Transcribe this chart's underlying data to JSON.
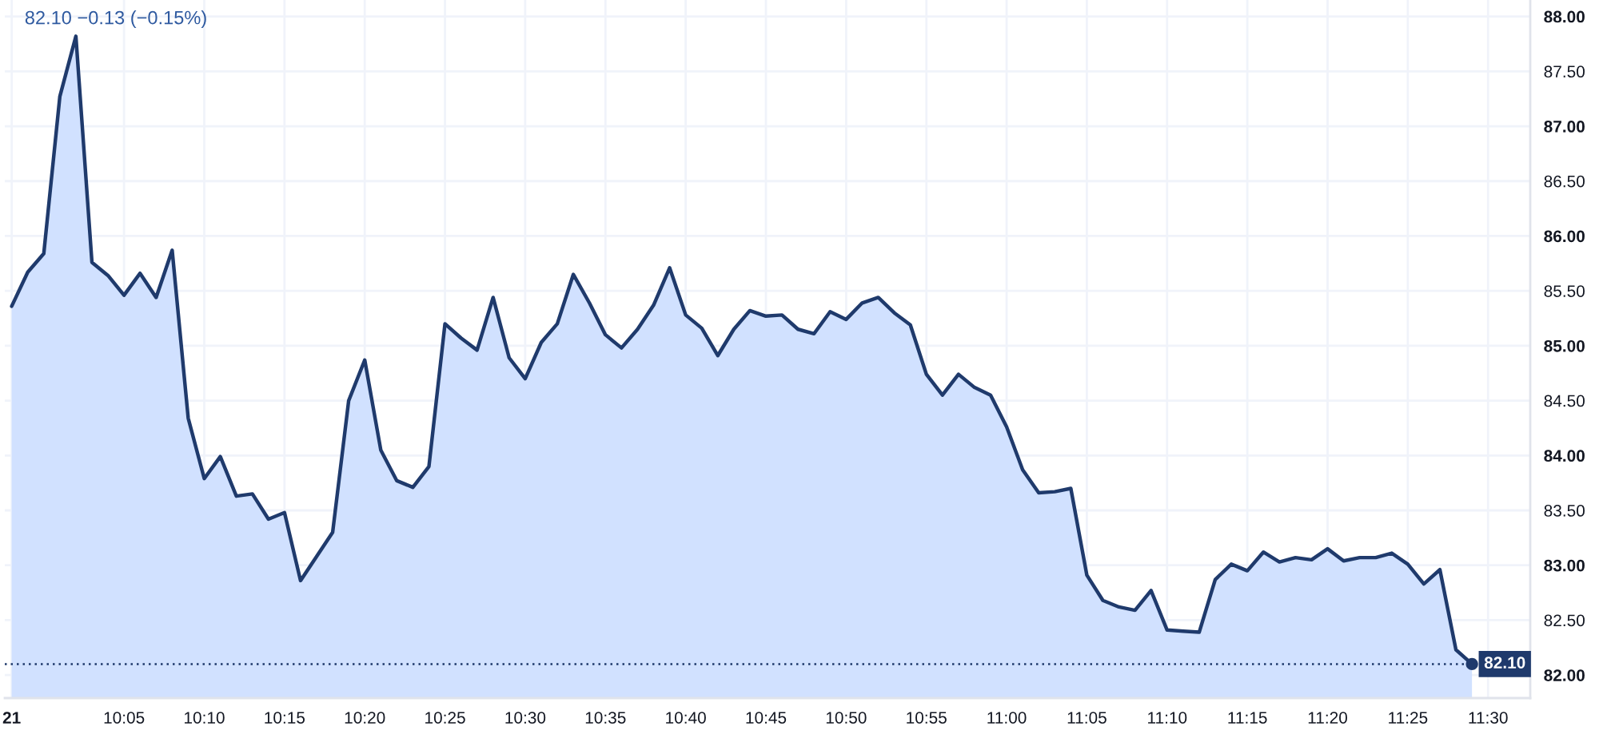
{
  "chart_data": {
    "type": "area",
    "title": "82.10 −0.13 (−0.15%)",
    "categories": [
      "21",
      null,
      null,
      null,
      null,
      null,
      null,
      "10:05",
      null,
      null,
      null,
      null,
      "10:10",
      null,
      null,
      null,
      null,
      "10:15",
      null,
      null,
      null,
      null,
      "10:20",
      null,
      null,
      null,
      null,
      "10:25",
      null,
      null,
      null,
      null,
      "10:30",
      null,
      null,
      null,
      null,
      "10:35",
      null,
      null,
      null,
      null,
      "10:40",
      null,
      null,
      null,
      null,
      "10:45",
      null,
      null,
      null,
      null,
      "10:50",
      null,
      null,
      null,
      null,
      "10:55",
      null,
      null,
      null,
      null,
      "11:00",
      null,
      null,
      null,
      null,
      "11:05",
      null,
      null,
      null,
      null,
      "11:10",
      null,
      null,
      null,
      null,
      "11:15",
      null,
      null,
      null,
      null,
      "11:20",
      null,
      null,
      null,
      null,
      "11:25",
      null,
      null,
      null,
      null,
      "11:30"
    ],
    "series": [
      {
        "color": "#1f3a6c",
        "values": [
          85.36,
          85.67,
          85.84,
          87.27,
          87.82,
          85.76,
          85.64,
          85.46,
          85.66,
          85.44,
          85.87,
          84.34,
          83.79,
          83.99,
          83.63,
          83.65,
          83.42,
          83.48,
          82.86,
          83.08,
          83.3,
          84.5,
          84.87,
          84.05,
          83.77,
          83.71,
          83.9,
          85.2,
          85.07,
          84.96,
          85.44,
          84.89,
          84.7,
          85.03,
          85.2,
          85.65,
          85.39,
          85.1,
          84.98,
          85.15,
          85.37,
          85.71,
          85.28,
          85.16,
          84.91,
          85.15,
          85.32,
          85.27,
          85.28,
          85.15,
          85.11,
          85.31,
          85.24,
          85.39,
          85.44,
          85.3,
          85.19,
          84.74,
          84.55,
          84.74,
          84.62,
          84.55,
          84.26,
          83.87,
          83.66,
          83.67,
          83.7,
          82.91,
          82.68,
          82.62,
          82.59,
          82.77,
          82.41,
          82.4,
          82.39,
          82.87,
          83.01,
          82.95,
          83.12,
          83.03,
          83.07,
          83.05,
          83.15,
          83.04,
          83.07,
          83.07,
          83.11,
          83.01,
          82.83,
          82.96,
          82.23,
          82.1,
          null
        ]
      },
      {
        "type": "scatter",
        "color": "#1f3a6c",
        "marker": "circle",
        "values": [
          null,
          null,
          null,
          null,
          null,
          null,
          null,
          null,
          null,
          null,
          null,
          null,
          null,
          null,
          null,
          null,
          null,
          null,
          null,
          null,
          null,
          null,
          null,
          null,
          null,
          null,
          null,
          null,
          null,
          null,
          null,
          null,
          null,
          null,
          null,
          null,
          null,
          null,
          null,
          null,
          null,
          null,
          null,
          null,
          null,
          null,
          null,
          null,
          null,
          null,
          null,
          null,
          null,
          null,
          null,
          null,
          null,
          null,
          null,
          null,
          null,
          null,
          null,
          null,
          null,
          null,
          null,
          null,
          null,
          null,
          null,
          null,
          null,
          null,
          null,
          null,
          null,
          null,
          null,
          null,
          null,
          null,
          null,
          null,
          null,
          null,
          null,
          null,
          null,
          null,
          null,
          82.1,
          null
        ]
      }
    ],
    "ylim": [
      81.79,
      88.15
    ],
    "yticks": [
      {
        "value": 82,
        "label": "82.00"
      },
      {
        "value": 82.5,
        "label": "82.50"
      },
      {
        "value": 83,
        "label": "83.00"
      },
      {
        "value": 83.5,
        "label": "83.50"
      },
      {
        "value": 84,
        "label": "84.00"
      },
      {
        "value": 84.5,
        "label": "84.50"
      },
      {
        "value": 85,
        "label": "85.00"
      },
      {
        "value": 85.5,
        "label": "85.50"
      },
      {
        "value": 86,
        "label": "86.00"
      },
      {
        "value": 86.5,
        "label": "86.50"
      },
      {
        "value": 87,
        "label": "87.00"
      },
      {
        "value": 87.5,
        "label": "87.50"
      },
      {
        "value": 88,
        "label": "88.00"
      }
    ],
    "ref_lines": [
      {
        "axis": "y",
        "value": 82.1,
        "label": "82.10",
        "color": "#1f3a6c",
        "line_style": "dotted"
      }
    ],
    "grid": true
  }
}
